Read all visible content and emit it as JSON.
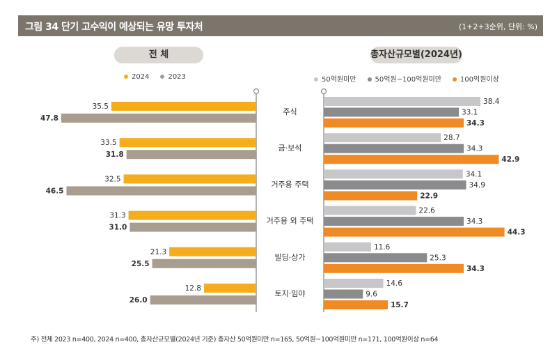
{
  "header": {
    "title": "그림 34  단기 고수익이 예상되는 유망 투자처",
    "unit": "(1+2+3순위, 단위:  %)"
  },
  "footnote": "주) 전체 2023 n=400, 2024 n=400, 총자산규모별(2024년 기준) 총자산 50억원미만 n=165, 50억원~100억원미만 n=171, 100억원이상 n=64",
  "chart_data": [
    {
      "type": "bar",
      "orientation": "horizontal-left",
      "title": "전 체",
      "categories": [
        "주식",
        "금·보석",
        "거주용 주택",
        "거주용 외 주택",
        "빌딩·상가",
        "토지·임야"
      ],
      "legend_position": "top",
      "series": [
        {
          "name": "2024",
          "color": "#f5ad1b",
          "values": [
            35.5,
            33.5,
            32.5,
            31.3,
            21.3,
            12.8
          ]
        },
        {
          "name": "2023",
          "color": "#a99d90",
          "values": [
            47.8,
            31.8,
            46.5,
            31.0,
            25.5,
            26.0
          ]
        }
      ]
    },
    {
      "type": "bar",
      "orientation": "horizontal-right",
      "title": "총자산규모별(2024년)",
      "categories": [
        "주식",
        "금·보석",
        "거주용 주택",
        "거주용 외 주택",
        "빌딩·상가",
        "토지·임야"
      ],
      "legend_position": "top",
      "series": [
        {
          "name": "50억원미만",
          "color": "#c7c6c8",
          "values": [
            38.4,
            28.7,
            34.1,
            22.6,
            11.6,
            14.6
          ]
        },
        {
          "name": "50억원~100억원미만",
          "color": "#8b8a8c",
          "values": [
            33.1,
            34.3,
            34.9,
            34.3,
            25.3,
            9.6
          ]
        },
        {
          "name": "100억원이상",
          "color": "#f08a24",
          "values": [
            34.3,
            42.9,
            22.9,
            44.3,
            34.3,
            15.7
          ]
        }
      ]
    }
  ]
}
